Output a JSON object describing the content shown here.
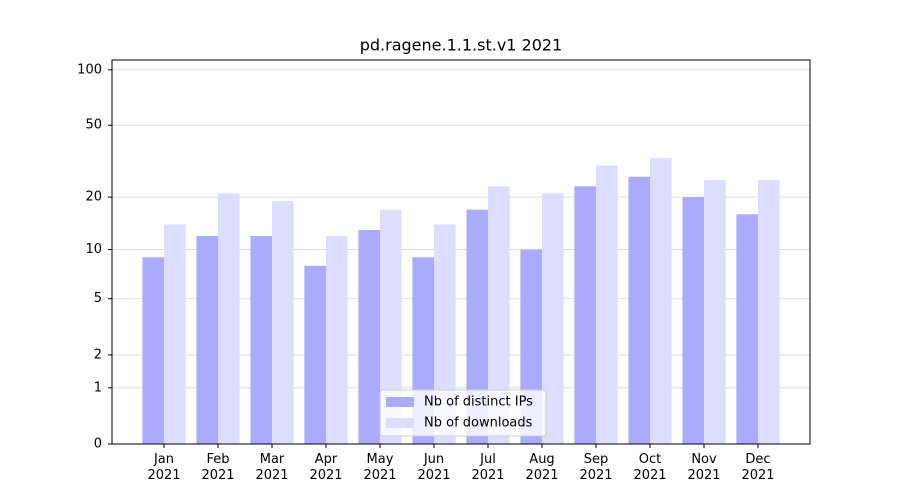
{
  "chart_data": {
    "type": "bar",
    "title": "pd.ragene.1.1.st.v1 2021",
    "categories": [
      "Jan\n2021",
      "Feb\n2021",
      "Mar\n2021",
      "Apr\n2021",
      "May\n2021",
      "Jun\n2021",
      "Jul\n2021",
      "Aug\n2021",
      "Sep\n2021",
      "Oct\n2021",
      "Nov\n2021",
      "Dec\n2021"
    ],
    "series": [
      {
        "name": "Nb of distinct IPs",
        "color": "#aaaaff",
        "values": [
          9,
          12,
          12,
          8,
          13,
          9,
          17,
          10,
          23,
          26,
          20,
          16
        ]
      },
      {
        "name": "Nb of downloads",
        "color": "#ddddff",
        "values": [
          14,
          21,
          19,
          12,
          17,
          14,
          23,
          21,
          30,
          33,
          25,
          25
        ]
      }
    ],
    "yscale": "log1p",
    "ylim": [
      0,
      113
    ],
    "yticks": [
      0,
      1,
      2,
      5,
      10,
      20,
      50,
      100
    ],
    "grid": true,
    "legend": "lower center"
  }
}
